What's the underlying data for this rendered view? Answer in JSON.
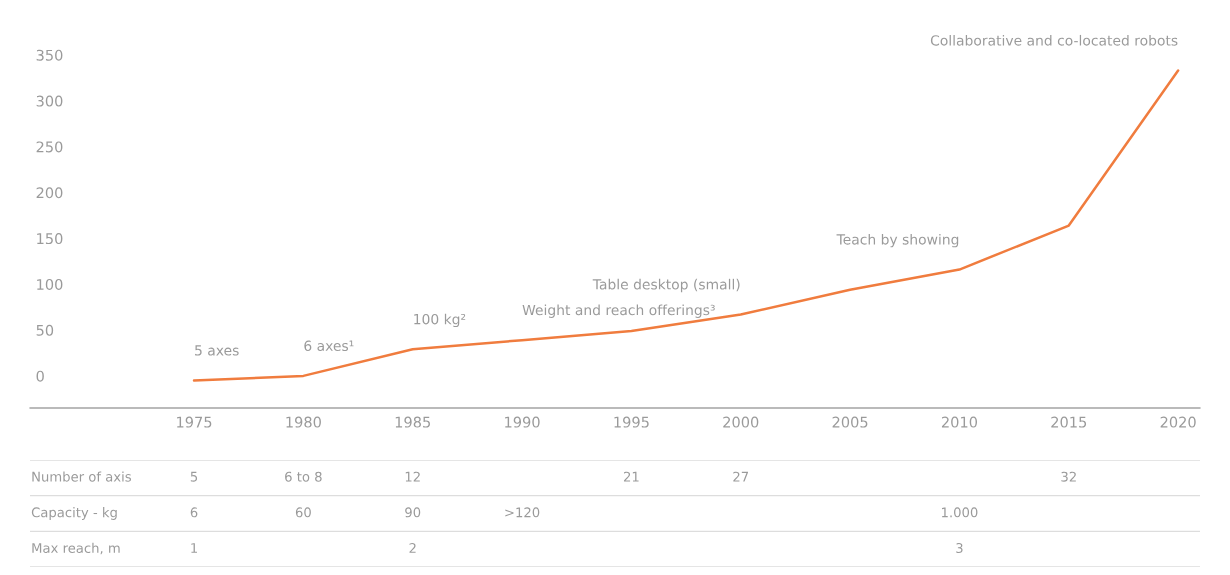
{
  "chart_data": [
    {
      "type": "line",
      "x": [
        1975,
        1980,
        1985,
        1990,
        1995,
        2000,
        2005,
        2010,
        2015,
        2020
      ],
      "series": [
        {
          "color": "#f07c3e",
          "values": [
            -5,
            0,
            29,
            39,
            49,
            67,
            94,
            116,
            164,
            333
          ]
        }
      ],
      "xlim": [
        1967.5,
        2021
      ],
      "ylim": [
        -35,
        350
      ],
      "xticks": [
        1975,
        1980,
        1985,
        1990,
        1995,
        2000,
        2005,
        2010,
        2015,
        2020
      ],
      "yticks": [
        0,
        50,
        100,
        150,
        200,
        250,
        300,
        350
      ],
      "grid": false,
      "marker": "none",
      "line_style": "solid",
      "annotations": [
        {
          "text": "5 axes",
          "x": 1975,
          "y": -5
        },
        {
          "text": "6 axes¹",
          "x": 1980,
          "y": 0
        },
        {
          "text": "100 kg²",
          "x": 1985,
          "y": 29
        },
        {
          "text": "Weight and reach offerings³",
          "x": 1990,
          "y": 39
        },
        {
          "text": "Table desktop (small)",
          "x": 2000,
          "y": 67
        },
        {
          "text": "Teach by showing",
          "x": 2010,
          "y": 116
        },
        {
          "text": "Collaborative and co-located robots",
          "x": 2020,
          "y": 333
        }
      ]
    },
    {
      "type": "heatmap",
      "categories": [
        "1975",
        "1980",
        "1985",
        "1990",
        "1995",
        "2000",
        "2005",
        "2010",
        "2015",
        "2020"
      ],
      "y_categories": [
        "Number of axis",
        "Capacity - kg",
        "Max reach, m"
      ],
      "cells": [
        [
          null,
          null,
          null,
          null,
          null,
          null,
          null,
          null,
          null,
          null
        ],
        [
          null,
          null,
          null,
          null,
          null,
          null,
          null,
          null,
          null,
          null
        ],
        [
          null,
          null,
          null,
          null,
          null,
          null,
          null,
          null,
          null,
          null
        ]
      ],
      "cell_labels": [
        [
          "5",
          "6 to 8",
          "12",
          null,
          "21",
          "27",
          null,
          null,
          "32",
          null
        ],
        [
          "6",
          "60",
          "90",
          ">120",
          null,
          null,
          null,
          "1.000",
          null,
          null
        ],
        [
          "1",
          null,
          "2",
          null,
          null,
          null,
          null,
          "3",
          null,
          null
        ]
      ],
      "tick_labels": false
    }
  ]
}
